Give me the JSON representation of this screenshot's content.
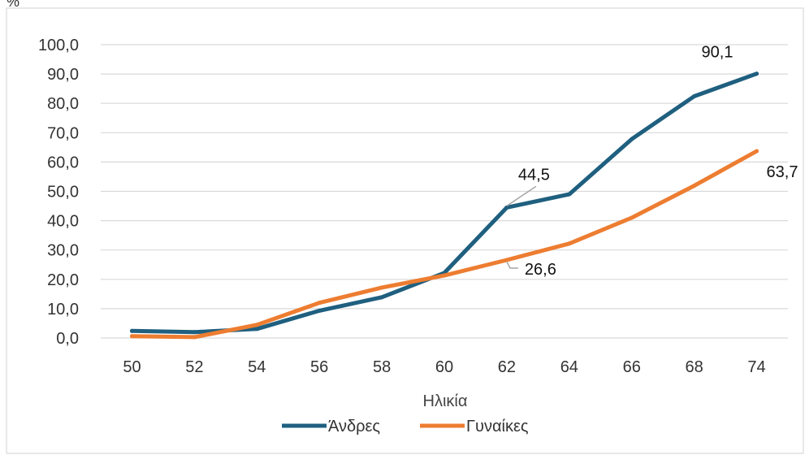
{
  "chart_data": {
    "type": "line",
    "title": "",
    "xlabel": "Ηλικία",
    "ylabel": "",
    "categories": [
      "50",
      "52",
      "54",
      "56",
      "58",
      "60",
      "62",
      "64",
      "66",
      "68",
      "74"
    ],
    "y_ticks": [
      "0,0",
      "10,0",
      "20,0",
      "30,0",
      "40,0",
      "50,0",
      "60,0",
      "70,0",
      "80,0",
      "90,0",
      "100,0"
    ],
    "ylim": [
      0,
      100
    ],
    "grid": true,
    "legend_position": "bottom",
    "series": [
      {
        "name": "Άνδρες",
        "color": "#1f5f7f",
        "values": [
          2.4,
          2.0,
          3.1,
          9.3,
          13.9,
          22.2,
          44.5,
          49.0,
          67.8,
          82.4,
          90.1
        ]
      },
      {
        "name": "Γυναίκες",
        "color": "#ed7d31",
        "values": [
          0.6,
          0.3,
          4.5,
          12.0,
          17.2,
          21.3,
          26.6,
          32.2,
          41.0,
          51.9,
          63.7
        ]
      }
    ],
    "data_labels": [
      {
        "series": 0,
        "index": 6,
        "text": "44,5"
      },
      {
        "series": 0,
        "index": 10,
        "text": "90,1"
      },
      {
        "series": 1,
        "index": 6,
        "text": "26,6"
      },
      {
        "series": 1,
        "index": 10,
        "text": "63,7"
      }
    ],
    "corner_label": "%"
  }
}
